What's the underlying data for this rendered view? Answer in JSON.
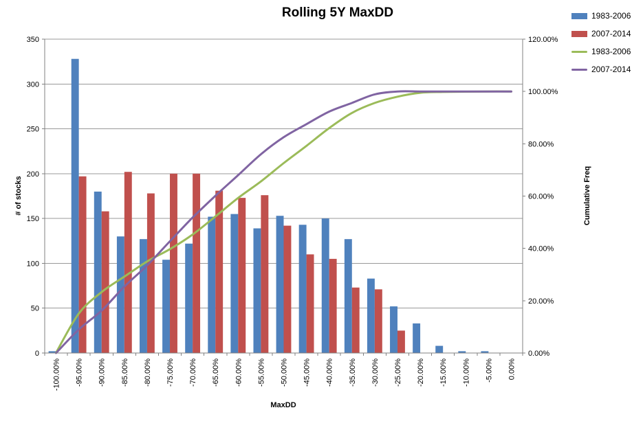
{
  "chart_data": {
    "type": "combo-bar-line",
    "title": "Rolling 5Y MaxDD",
    "grid": true,
    "legend_position": "top-right",
    "categories": [
      "-100.00%",
      "-95.00%",
      "-90.00%",
      "-85.00%",
      "-80.00%",
      "-75.00%",
      "-70.00%",
      "-65.00%",
      "-60.00%",
      "-55.00%",
      "-50.00%",
      "-45.00%",
      "-40.00%",
      "-35.00%",
      "-30.00%",
      "-25.00%",
      "-20.00%",
      "-15.00%",
      "-10.00%",
      "-5.00%",
      "0.00%"
    ],
    "bar_series": [
      {
        "name": "1983-2006",
        "color": "#4F81BD",
        "axis": "left",
        "values": [
          2,
          328,
          180,
          130,
          127,
          104,
          122,
          152,
          155,
          139,
          153,
          143,
          150,
          127,
          83,
          52,
          33,
          8,
          2,
          2,
          0
        ]
      },
      {
        "name": "2007-2014",
        "color": "#C0504D",
        "axis": "left",
        "values": [
          0,
          197,
          158,
          202,
          178,
          200,
          200,
          181,
          173,
          176,
          142,
          110,
          105,
          73,
          71,
          25,
          0,
          0,
          0,
          0,
          0
        ]
      }
    ],
    "line_series": [
      {
        "name": "1983-2006",
        "color": "#9BBB59",
        "axis": "right",
        "smooth": true,
        "values_pct": [
          0.1,
          15.1,
          23.3,
          29.2,
          35.0,
          39.7,
          45.3,
          52.2,
          59.3,
          65.6,
          72.6,
          79.2,
          86.0,
          91.8,
          95.6,
          98.0,
          99.5,
          99.8,
          99.9,
          100.0,
          100.0
        ]
      },
      {
        "name": "2007-2014",
        "color": "#8064A2",
        "axis": "right",
        "smooth": true,
        "values_pct": [
          0.0,
          9.0,
          16.2,
          25.4,
          33.5,
          42.7,
          51.8,
          60.1,
          68.0,
          76.0,
          82.5,
          87.5,
          92.3,
          95.6,
          98.9,
          100.0,
          100.0,
          100.0,
          100.0,
          100.0,
          100.0
        ]
      }
    ],
    "left_axis": {
      "title": "# of stocks",
      "min": 0,
      "max": 350,
      "step": 50,
      "tick_labels": [
        "0",
        "50",
        "100",
        "150",
        "200",
        "250",
        "300",
        "350"
      ]
    },
    "right_axis": {
      "title": "Cumulative Freq",
      "min": 0,
      "max": 120,
      "step": 20,
      "tick_labels": [
        "0.00%",
        "20.00%",
        "40.00%",
        "60.00%",
        "80.00%",
        "100.00%",
        "120.00%"
      ]
    },
    "x_axis": {
      "title": "MaxDD"
    },
    "legend": [
      {
        "label": "1983-2006",
        "swatch": "bar",
        "color": "#4F81BD"
      },
      {
        "label": "2007-2014",
        "swatch": "bar",
        "color": "#C0504D"
      },
      {
        "label": "1983-2006",
        "swatch": "line",
        "color": "#9BBB59"
      },
      {
        "label": "2007-2014",
        "swatch": "line",
        "color": "#8064A2"
      }
    ],
    "colors": {
      "gridline": "#999999",
      "axis_line": "#808080",
      "background": "#FFFFFF",
      "text": "#000000"
    }
  }
}
